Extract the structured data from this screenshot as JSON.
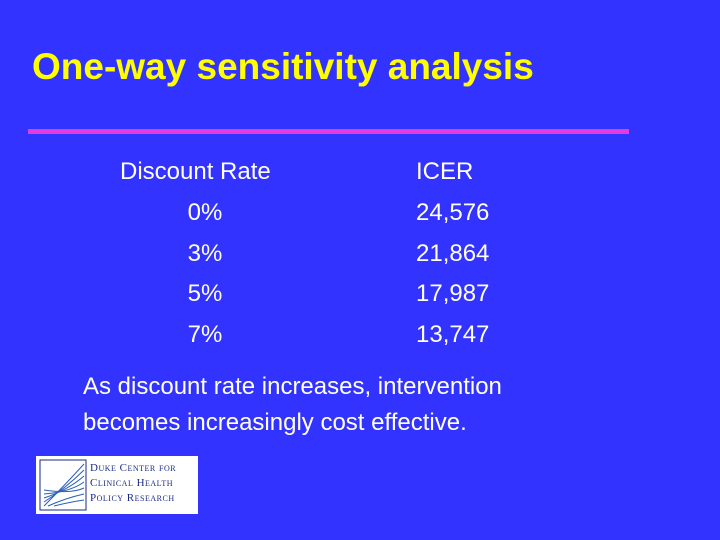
{
  "header": {
    "title": "One-way sensitivity analysis"
  },
  "table": {
    "columns": [
      "Discount Rate",
      "ICER"
    ],
    "rows": [
      [
        "0%",
        "24,576"
      ],
      [
        "3%",
        "21,864"
      ],
      [
        "5%",
        "17,987"
      ],
      [
        "7%",
        "13,747"
      ]
    ]
  },
  "note": {
    "lines": [
      "As discount rate increases, intervention",
      "becomes increasingly cost effective."
    ]
  },
  "logo": {
    "lines": [
      "Duke Center for",
      "Clinical Health",
      "Policy Research"
    ]
  }
}
